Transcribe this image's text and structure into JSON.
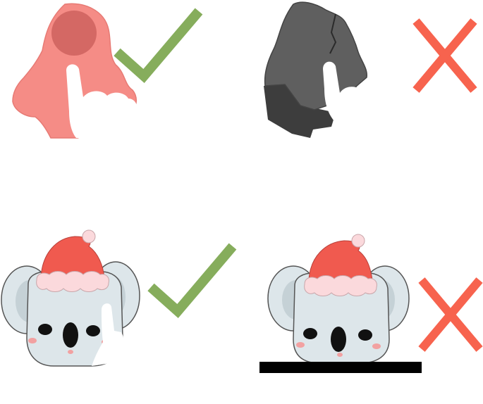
{
  "panels": [
    {
      "subject": "red-rock-tapped",
      "verdict": "correct",
      "verdict_icon": "check-icon"
    },
    {
      "subject": "grey-rock-tapped",
      "verdict": "incorrect",
      "verdict_icon": "cross-icon"
    },
    {
      "subject": "koala-tapped",
      "verdict": "correct",
      "verdict_icon": "check-icon"
    },
    {
      "subject": "koala-on-black-bar",
      "verdict": "incorrect",
      "verdict_icon": "cross-icon"
    }
  ],
  "colors": {
    "check": "#86ad5c",
    "cross": "#f7634e",
    "red_rock": "#f58c86",
    "red_rock_dark": "#d46864",
    "grey_rock": "#5f5f5f",
    "grey_rock_dark": "#3d3d3d",
    "koala_fur": "#dde6ea",
    "koala_outline": "#555555",
    "hat_red": "#f05a4f",
    "hat_trim": "#fbd9dc",
    "bar": "#000000",
    "hand": "#ffffff"
  }
}
